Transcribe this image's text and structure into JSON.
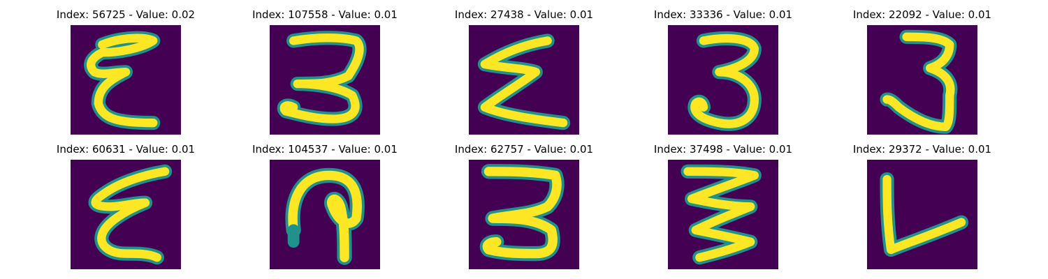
{
  "figure": {
    "colors": {
      "background": "#440154",
      "stroke_outer": "#21918c",
      "stroke_inner": "#fde725"
    },
    "panels": [
      {
        "title": "Index: 56725 - Value: 0.02",
        "glyph": "epsilon-tall-icon"
      },
      {
        "title": "Index: 107558 - Value: 0.01",
        "glyph": "three-flat-top-icon"
      },
      {
        "title": "Index: 27438 - Value: 0.01",
        "glyph": "sigma-like-icon"
      },
      {
        "title": "Index: 33336 - Value: 0.01",
        "glyph": "three-curvy-icon"
      },
      {
        "title": "Index: 22092 - Value: 0.01",
        "glyph": "three-narrow-icon"
      },
      {
        "title": "Index: 60631 - Value: 0.01",
        "glyph": "epsilon-slanted-icon"
      },
      {
        "title": "Index: 104537 - Value: 0.01",
        "glyph": "loop-stem-icon"
      },
      {
        "title": "Index: 62757 - Value: 0.01",
        "glyph": "three-bold-icon"
      },
      {
        "title": "Index: 37498 - Value: 0.01",
        "glyph": "sigma-wide-icon"
      },
      {
        "title": "Index: 29372 - Value: 0.01",
        "glyph": "l-shape-icon"
      }
    ]
  }
}
